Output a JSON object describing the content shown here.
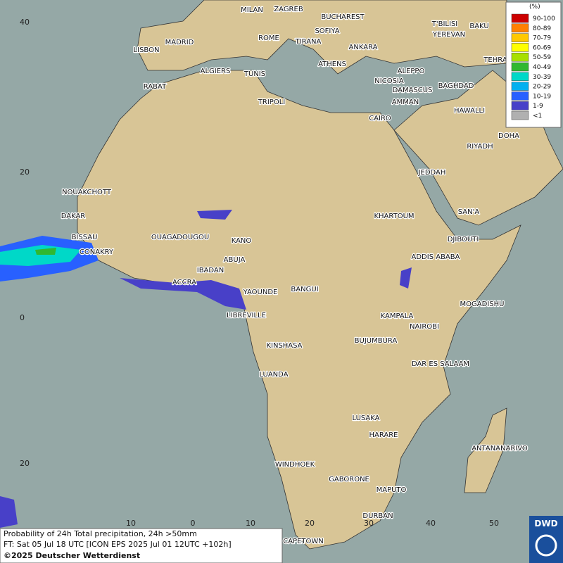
{
  "map": {
    "cities": [
      "MILAN",
      "ZAGREB",
      "BUCHAREST",
      "SOFIYA",
      "ROME",
      "TIRANA",
      "ANKARA",
      "T'BILISI",
      "YEREVAN",
      "BAKU",
      "TEHRA",
      "MADRID",
      "LISBON",
      "ATHENS",
      "ALGIERS",
      "TUNIS",
      "ALEPPO",
      "NICOSIA",
      "BAGHDAD",
      "RABAT",
      "DAMASCUS",
      "AMMAN",
      "TRIPOLI",
      "HAWALLI",
      "CAIRO",
      "DOHA",
      "RIYADH",
      "JEDDAH",
      "NOUAKCHOTT",
      "SAN'A",
      "KHARTOUM",
      "DAKAR",
      "BISSAU",
      "OUAGADOUGOU",
      "KANO",
      "DJIBOUTI",
      "CONAKRY",
      "ABUJA",
      "ADDIS ABABA",
      "IBADAN",
      "ACCRA",
      "YAOUNDE",
      "BANGUI",
      "MOGADISHU",
      "KAMPALA",
      "LIBREVILLE",
      "NAIROBI",
      "BUJUMBURA",
      "KINSHASA",
      "DAR ES SALAAM",
      "LUANDA",
      "LUSAKA",
      "HARARE",
      "ANTANANARIVO",
      "WINDHOEK",
      "GABORONE",
      "MAPUTO",
      "DURBAN",
      "CAPETOWN"
    ],
    "lat_labels": [
      40,
      20,
      0,
      20
    ],
    "lon_labels": [
      10,
      0,
      10,
      20,
      30,
      40,
      50
    ],
    "legend": {
      "title": "(%)",
      "entries": [
        {
          "label": "90-100",
          "color": "#cc0000"
        },
        {
          "label": "80-89",
          "color": "#ff8000"
        },
        {
          "label": "70-79",
          "color": "#ffc800"
        },
        {
          "label": "60-69",
          "color": "#ffff00"
        },
        {
          "label": "50-59",
          "color": "#a8e000"
        },
        {
          "label": "40-49",
          "color": "#30b830"
        },
        {
          "label": "30-39",
          "color": "#00d8c8"
        },
        {
          "label": "20-29",
          "color": "#00b0f0"
        },
        {
          "label": "10-19",
          "color": "#2860ff"
        },
        {
          "label": "1-9",
          "color": "#4840c8"
        },
        {
          "label": "<1",
          "color": "#b0b0b0"
        }
      ]
    },
    "footer": {
      "line1": "Probability of 24h Total precipitation, 24h >50mm",
      "line2": "FT: Sat 05 Jul 18 UTC [ICON EPS 2025 Jul 01 12UTC +102h]",
      "line3": "©2025 Deutscher Wetterdienst"
    },
    "logo": "DWD"
  }
}
